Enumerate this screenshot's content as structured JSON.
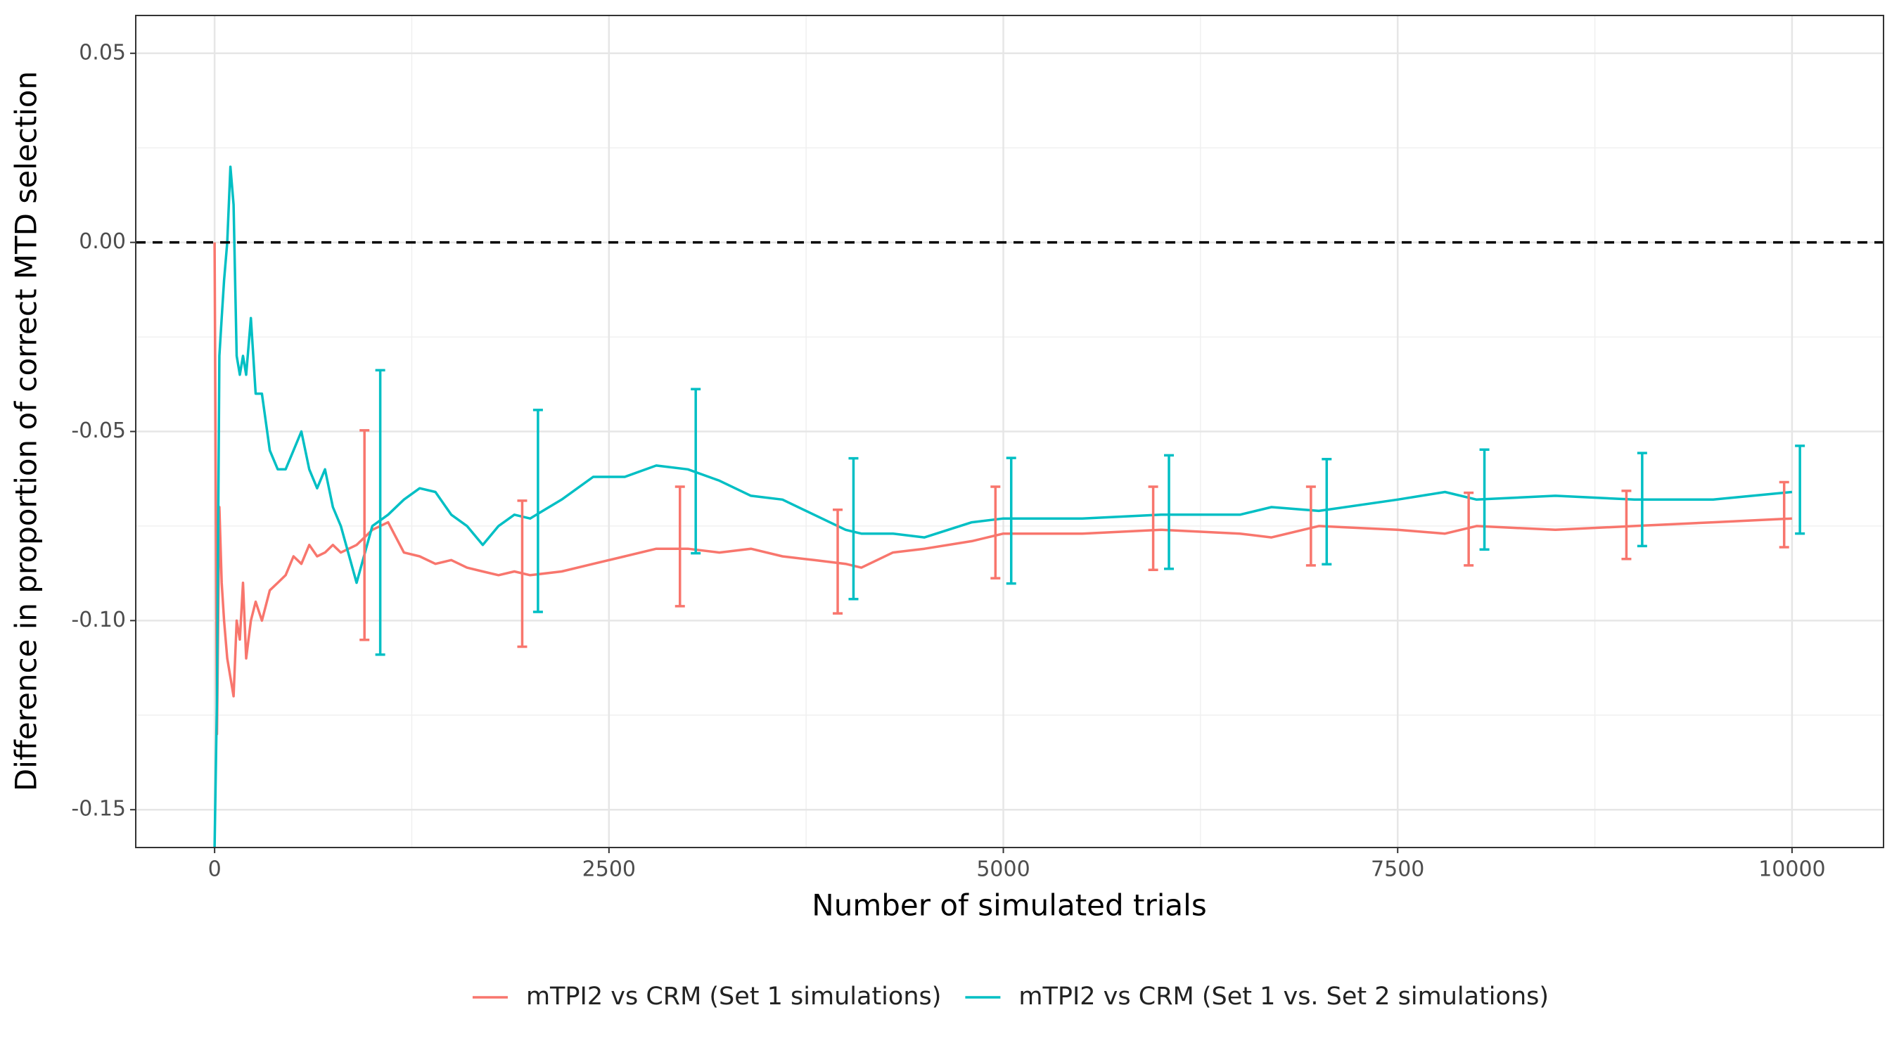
{
  "chart_data": {
    "type": "line",
    "xlabel": "Number of simulated trials",
    "ylabel": "Difference in proportion of correct MTD selection",
    "x": [
      0,
      15,
      30,
      45,
      60,
      80,
      100,
      120,
      140,
      160,
      180,
      200,
      230,
      260,
      300,
      350,
      400,
      450,
      500,
      550,
      600,
      650,
      700,
      750,
      800,
      900,
      1000,
      1100,
      1200,
      1300,
      1400,
      1500,
      1600,
      1700,
      1800,
      1900,
      2000,
      2200,
      2400,
      2600,
      2800,
      3000,
      3200,
      3400,
      3600,
      3800,
      4000,
      4100,
      4300,
      4500,
      4800,
      5000,
      5500,
      6000,
      6500,
      6700,
      7000,
      7500,
      7800,
      8000,
      8500,
      9000,
      9500,
      10000
    ],
    "series": [
      {
        "name": "mTPI2 vs CRM (Set 1 simulations)",
        "color": "#F8766D",
        "values": [
          0,
          -0.13,
          -0.07,
          -0.09,
          -0.1,
          -0.11,
          -0.115,
          -0.12,
          -0.1,
          -0.105,
          -0.09,
          -0.11,
          -0.1,
          -0.095,
          -0.1,
          -0.092,
          -0.09,
          -0.088,
          -0.083,
          -0.085,
          -0.08,
          -0.083,
          -0.082,
          -0.08,
          -0.082,
          -0.08,
          -0.076,
          -0.074,
          -0.082,
          -0.083,
          -0.085,
          -0.084,
          -0.086,
          -0.087,
          -0.088,
          -0.087,
          -0.088,
          -0.087,
          -0.085,
          -0.083,
          -0.081,
          -0.081,
          -0.082,
          -0.081,
          -0.083,
          -0.084,
          -0.085,
          -0.086,
          -0.082,
          -0.081,
          -0.079,
          -0.077,
          -0.077,
          -0.076,
          -0.077,
          -0.078,
          -0.075,
          -0.076,
          -0.077,
          -0.075,
          -0.076,
          -0.075,
          -0.074,
          -0.073
        ],
        "errorbar_x": [
          950,
          1950,
          2950,
          3950,
          4950,
          5950,
          6950,
          7950,
          8950,
          9950
        ],
        "errorbar_values": [
          -0.0774,
          -0.0876,
          -0.0804,
          -0.0844,
          -0.0767,
          -0.0756,
          -0.075,
          -0.0758,
          -0.0747,
          -0.072
        ],
        "errorbar_errors": [
          0.0277,
          0.0193,
          0.0158,
          0.0137,
          0.0121,
          0.011,
          0.0104,
          0.0096,
          0.009,
          0.0086
        ]
      },
      {
        "name": "mTPI2 vs CRM (Set 1 vs. Set 2 simulations)",
        "color": "#00BFC4",
        "values": [
          -0.16,
          -0.12,
          -0.03,
          -0.02,
          -0.01,
          0.0,
          0.02,
          0.01,
          -0.03,
          -0.035,
          -0.03,
          -0.035,
          -0.02,
          -0.04,
          -0.04,
          -0.055,
          -0.06,
          -0.06,
          -0.055,
          -0.05,
          -0.06,
          -0.065,
          -0.06,
          -0.07,
          -0.075,
          -0.09,
          -0.075,
          -0.072,
          -0.068,
          -0.065,
          -0.066,
          -0.072,
          -0.075,
          -0.08,
          -0.075,
          -0.072,
          -0.073,
          -0.068,
          -0.062,
          -0.062,
          -0.059,
          -0.06,
          -0.063,
          -0.067,
          -0.068,
          -0.072,
          -0.076,
          -0.077,
          -0.077,
          -0.078,
          -0.074,
          -0.073,
          -0.073,
          -0.072,
          -0.072,
          -0.07,
          -0.071,
          -0.068,
          -0.066,
          -0.068,
          -0.067,
          -0.068,
          -0.068,
          -0.066
        ],
        "errorbar_x": [
          1050,
          2050,
          3050,
          4050,
          5050,
          6050,
          7050,
          8050,
          9050,
          10050
        ],
        "errorbar_values": [
          -0.0714,
          -0.071,
          -0.0605,
          -0.0757,
          -0.0736,
          -0.0713,
          -0.0712,
          -0.068,
          -0.068,
          -0.0654
        ],
        "errorbar_errors": [
          0.0376,
          0.0267,
          0.0217,
          0.0186,
          0.0166,
          0.015,
          0.0139,
          0.0132,
          0.0123,
          0.0116
        ]
      }
    ],
    "xlim": [
      -500,
      10580
    ],
    "xticks": [
      0,
      2500,
      5000,
      7500,
      10000
    ],
    "ylim": [
      -0.16,
      0.06
    ],
    "yticks": [
      0.05,
      {
        "value": 0,
        "label": "0.00"
      },
      -0.05,
      {
        "value": -0.1,
        "label": "-0.10"
      },
      -0.15
    ],
    "hline": 0,
    "grid": true,
    "legend": "bottom"
  }
}
